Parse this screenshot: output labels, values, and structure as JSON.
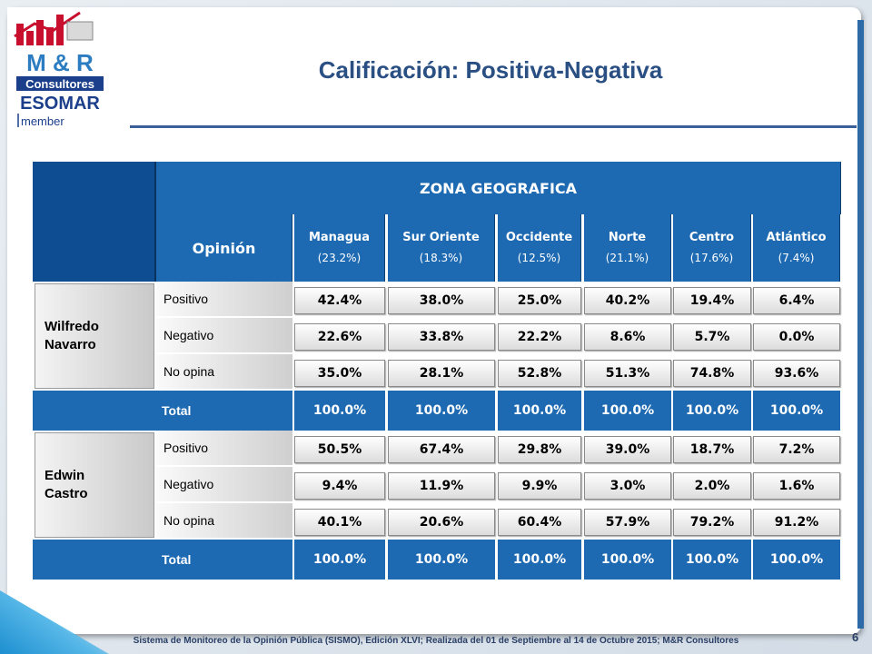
{
  "logo": {
    "line1": "M & R",
    "line2": "Consultores",
    "line3": "ESOMAR",
    "line4": "member"
  },
  "title": "Calificación: Positiva-Negativa",
  "table": {
    "zone_header": "ZONA GEOGRAFICA",
    "opinion_header": "Opinión",
    "columns": [
      {
        "name": "Managua",
        "pct": "(23.2%)"
      },
      {
        "name": "Sur Oriente",
        "pct": "(18.3%)"
      },
      {
        "name": "Occidente",
        "pct": "(12.5%)"
      },
      {
        "name": "Norte",
        "pct": "(21.1%)"
      },
      {
        "name": "Centro",
        "pct": "(17.6%)"
      },
      {
        "name": "Atlántico",
        "pct": "(7.4%)"
      }
    ],
    "candidates": [
      {
        "name_line1": "Wilfredo",
        "name_line2": "Navarro",
        "rows": [
          {
            "label": "Positivo",
            "values": [
              "42.4%",
              "38.0%",
              "25.0%",
              "40.2%",
              "19.4%",
              "6.4%"
            ]
          },
          {
            "label": "Negativo",
            "values": [
              "22.6%",
              "33.8%",
              "22.2%",
              "8.6%",
              "5.7%",
              "0.0%"
            ]
          },
          {
            "label": "No opina",
            "values": [
              "35.0%",
              "28.1%",
              "52.8%",
              "51.3%",
              "74.8%",
              "93.6%"
            ]
          }
        ],
        "total_label": "Total",
        "totals": [
          "100.0%",
          "100.0%",
          "100.0%",
          "100.0%",
          "100.0%",
          "100.0%"
        ]
      },
      {
        "name_line1": "Edwin",
        "name_line2": "Castro",
        "rows": [
          {
            "label": "Positivo",
            "values": [
              "50.5%",
              "67.4%",
              "29.8%",
              "39.0%",
              "18.7%",
              "7.2%"
            ]
          },
          {
            "label": "Negativo",
            "values": [
              "9.4%",
              "11.9%",
              "9.9%",
              "3.0%",
              "2.0%",
              "1.6%"
            ]
          },
          {
            "label": "No opina",
            "values": [
              "40.1%",
              "20.6%",
              "60.4%",
              "57.9%",
              "79.2%",
              "91.2%"
            ]
          }
        ],
        "total_label": "Total",
        "totals": [
          "100.0%",
          "100.0%",
          "100.0%",
          "100.0%",
          "100.0%",
          "100.0%"
        ]
      }
    ]
  },
  "footer": "Sistema de Monitoreo de la Opinión Pública (SISMO), Edición XLVI; Realizada del 01 de Septiembre al 14 de Octubre 2015; M&R Consultores",
  "page_number": "6",
  "colors": {
    "header_blue": "#1e6ab2",
    "title_blue": "#2a4f83"
  }
}
